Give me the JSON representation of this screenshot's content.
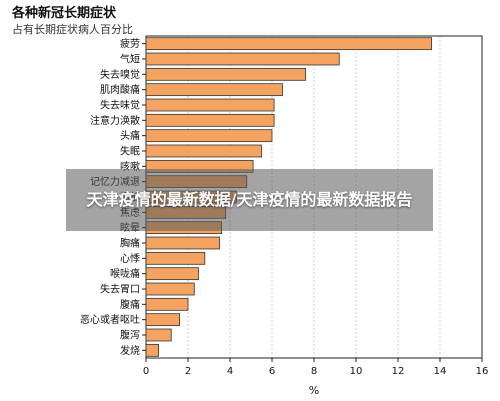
{
  "chart_data": {
    "type": "bar",
    "orientation": "horizontal",
    "title": "各种新冠长期症状",
    "subtitle": "占有长期症状病人百分比",
    "xlabel": "%",
    "ylabel": "",
    "xlim": [
      0,
      16
    ],
    "xticks": [
      "0",
      "2",
      "4",
      "6",
      "8",
      "10",
      "12",
      "14",
      "16"
    ],
    "grid": "vertical",
    "bar_color": "#f4a460",
    "bar_edge_color": "#333333",
    "categories": [
      "疲劳",
      "气短",
      "失去嗅觉",
      "肌肉酸痛",
      "失去味觉",
      "注意力涣散",
      "头痛",
      "失眠",
      "咳嗽",
      "记忆力减退",
      "抑郁",
      "焦虑",
      "眩晕",
      "胸痛",
      "心悸",
      "喉咙痛",
      "失去胃口",
      "腹痛",
      "恶心或者呕吐",
      "腹泻",
      "发烧"
    ],
    "values": [
      13.6,
      9.2,
      7.6,
      6.5,
      6.1,
      6.1,
      6.0,
      5.5,
      5.1,
      4.8,
      4.3,
      3.8,
      3.6,
      3.5,
      2.8,
      2.5,
      2.3,
      2.0,
      1.6,
      1.2,
      0.6
    ]
  },
  "overlay": {
    "text": "天津疫情的最新数据/天津疫情的最新数据报告"
  }
}
